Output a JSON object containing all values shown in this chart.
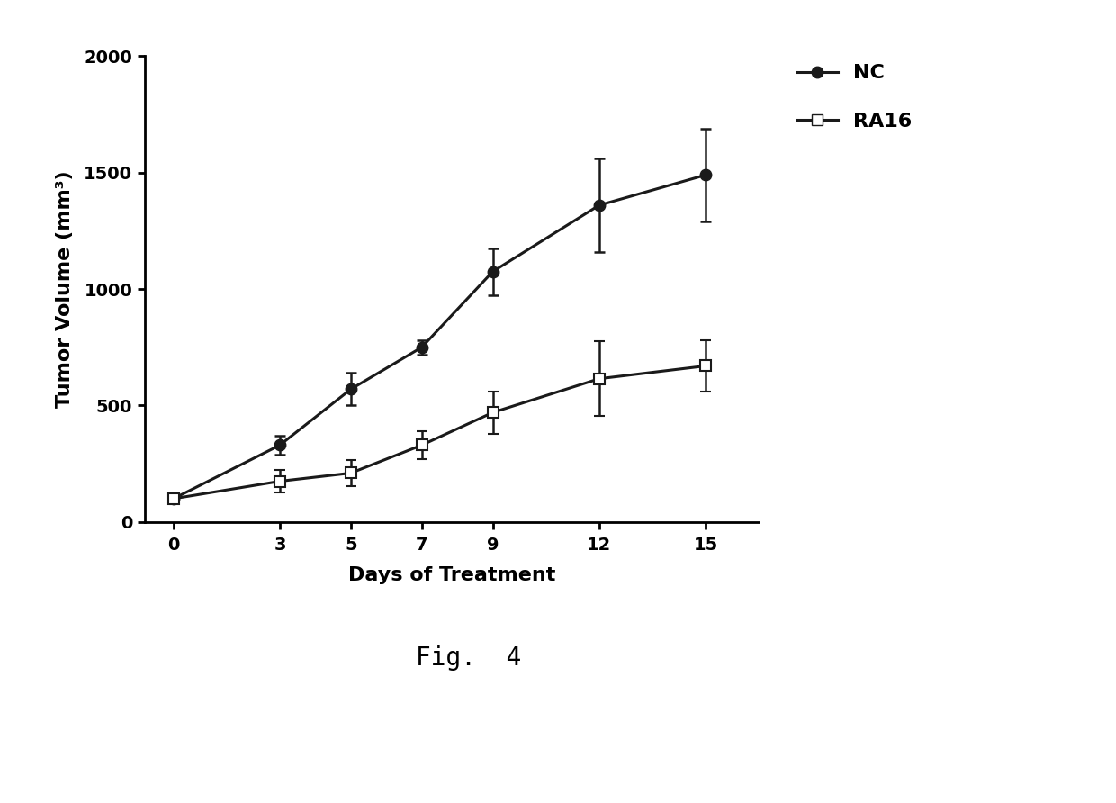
{
  "x": [
    0,
    3,
    5,
    7,
    9,
    12,
    15
  ],
  "nc_y": [
    100,
    330,
    570,
    750,
    1075,
    1360,
    1490
  ],
  "nc_err": [
    20,
    40,
    70,
    30,
    100,
    200,
    200
  ],
  "ra16_y": [
    100,
    175,
    210,
    330,
    470,
    615,
    670
  ],
  "ra16_err": [
    15,
    50,
    55,
    60,
    90,
    160,
    110
  ],
  "xlabel": "Days of Treatment",
  "ylabel": "Tumor Volume (mm³)",
  "ylim": [
    0,
    2000
  ],
  "yticks": [
    0,
    500,
    1000,
    1500,
    2000
  ],
  "xticks": [
    0,
    3,
    5,
    7,
    9,
    12,
    15
  ],
  "nc_label": "NC",
  "ra16_label": "RA16",
  "fig_label": "Fig.  4",
  "line_color": "#1a1a1a",
  "background_color": "#ffffff",
  "fontsize_axis_label": 16,
  "fontsize_tick": 14,
  "fontsize_legend": 16,
  "fontsize_fig_label": 20
}
